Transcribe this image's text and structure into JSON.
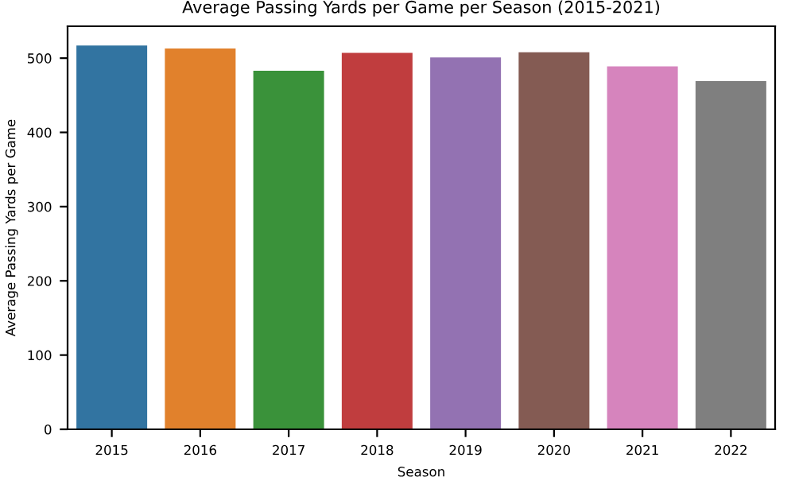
{
  "chart_data": {
    "type": "bar",
    "title": "Average Passing Yards per Game per Season (2015-2021)",
    "xlabel": "Season",
    "ylabel": "Average Passing Yards per Game",
    "categories": [
      "2015",
      "2016",
      "2017",
      "2018",
      "2019",
      "2020",
      "2021",
      "2022"
    ],
    "values": [
      517,
      513,
      483,
      507,
      501,
      508,
      489,
      469
    ],
    "colors": [
      "#3274a1",
      "#e1812c",
      "#3a923a",
      "#c03d3e",
      "#9372b2",
      "#845b53",
      "#d684bd",
      "#7f7f7f"
    ],
    "ylim": [
      0,
      543
    ],
    "yticks": [
      0,
      100,
      200,
      300,
      400,
      500
    ],
    "grid": false,
    "legend": false
  }
}
